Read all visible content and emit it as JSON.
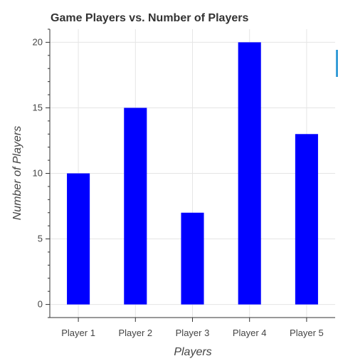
{
  "chart_data": {
    "type": "bar",
    "title": "Game Players vs. Number of Players",
    "xlabel": "Players",
    "ylabel": "Number of Players",
    "categories": [
      "Player 1",
      "Player 2",
      "Player 3",
      "Player 4",
      "Player 5"
    ],
    "values": [
      10,
      15,
      7,
      20,
      13
    ],
    "ylim": [
      -1,
      21
    ],
    "yticks": [
      0,
      5,
      10,
      15,
      20
    ],
    "grid": true,
    "legend": "none",
    "bar_color": "#0000ff"
  },
  "colors": {
    "grid": "#e5e5e5",
    "axis": "#333333",
    "accent": "#3a9fd8"
  }
}
